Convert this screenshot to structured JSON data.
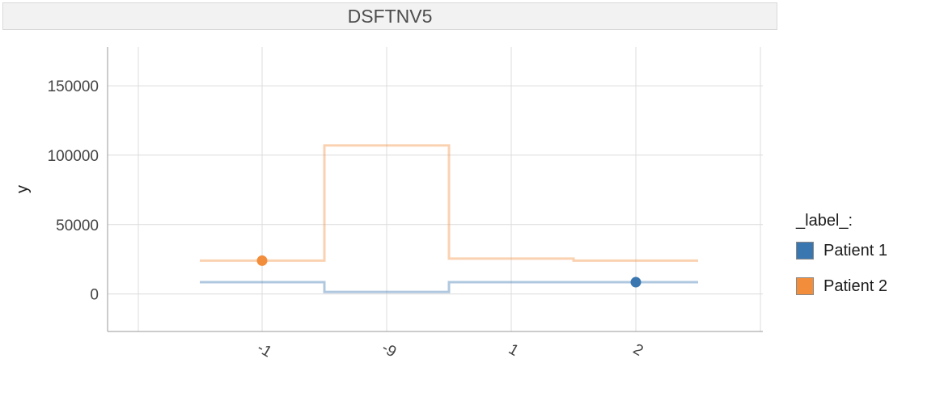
{
  "strip_title": "DSFTNV5",
  "chart_data": {
    "type": "line",
    "step": true,
    "categories": [
      "-1",
      "-9",
      "1",
      "2"
    ],
    "ylabel": "y",
    "xlabel": "",
    "ylim": [
      -27000,
      178000
    ],
    "yticks": [
      0,
      50000,
      100000,
      150000
    ],
    "grid": true,
    "legend_title": "_label_:",
    "legend_position": "right",
    "series": [
      {
        "name": "Patient 1",
        "color": "#3a76b0",
        "values": [
          8500,
          1500,
          8500,
          8500
        ],
        "highlight_index": 3
      },
      {
        "name": "Patient 2",
        "color": "#f28e3b",
        "values": [
          24000,
          107000,
          25500,
          24000
        ],
        "highlight_index": 0
      }
    ]
  }
}
